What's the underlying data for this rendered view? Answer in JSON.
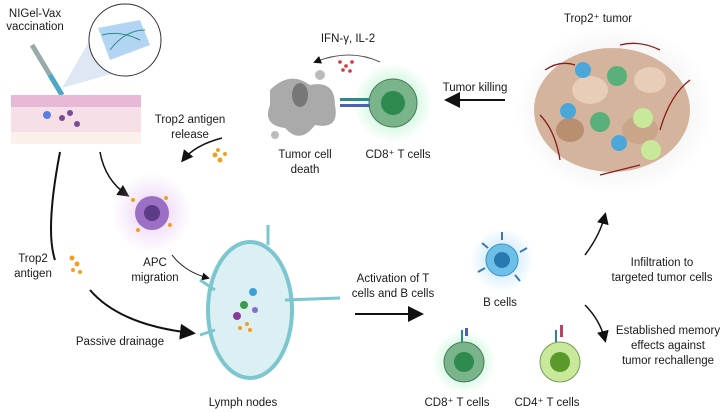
{
  "labels": {
    "vaccination": [
      "NIGel-Vax",
      "vaccination"
    ],
    "cytokines": "IFN-γ, IL-2",
    "tumor": "Trop2⁺ tumor",
    "tumor_killing": "Tumor killing",
    "antigen_release": [
      "Trop2 antigen",
      "release"
    ],
    "tumor_cell_death": [
      "Tumor cell",
      "death"
    ],
    "cd8_top": "CD8⁺ T cells",
    "apc_migration": [
      "APC",
      "migration"
    ],
    "trop2_antigen": [
      "Trop2",
      "antigen"
    ],
    "passive_drainage": "Passive drainage",
    "lymph_nodes": "Lymph nodes",
    "activation": [
      "Activation of T",
      "cells and B cells"
    ],
    "b_cells": "B cells",
    "infiltration": [
      "Infiltration to",
      "targeted tumor cells"
    ],
    "memory": [
      "Established memory",
      "effects against",
      "tumor rechallenge"
    ],
    "cd8_bottom": "CD8⁺ T cells",
    "cd4_bottom": "CD4⁺ T cells"
  },
  "colors": {
    "cd8": "#5a9e6f",
    "cd4": "#c8e89a",
    "b_cell": "#5bb4e0",
    "apc": "#8b5fb0",
    "antigen": "#f0a020",
    "lymph": "#7cc6cf",
    "vessel": "#8b1a1a",
    "tumor": "#c9a58a"
  }
}
